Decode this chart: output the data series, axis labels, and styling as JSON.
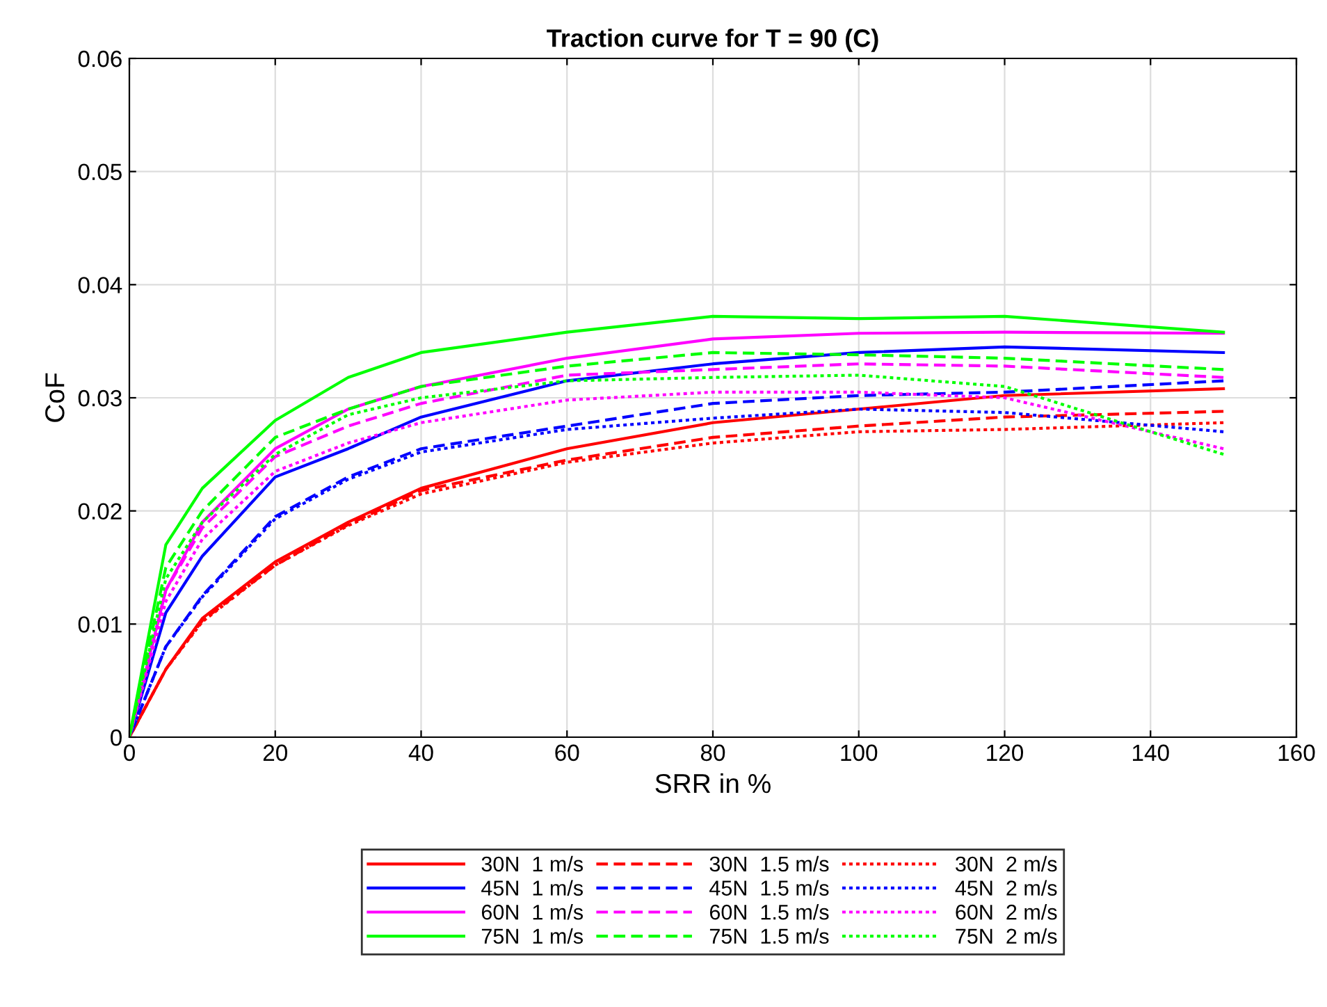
{
  "chart_data": {
    "type": "line",
    "title": "Traction curve for T = 90 (C)",
    "xlabel": "SRR in %",
    "ylabel": "CoF",
    "x": [
      0,
      5,
      10,
      20,
      30,
      40,
      60,
      80,
      100,
      120,
      150
    ],
    "xlim": [
      0,
      160
    ],
    "xticks": [
      0,
      20,
      40,
      60,
      80,
      100,
      120,
      140,
      160
    ],
    "ylim": [
      0,
      0.06
    ],
    "yticks": [
      0,
      0.01,
      0.02,
      0.03,
      0.04,
      0.05,
      0.06
    ],
    "grid": true,
    "legend": "bottom",
    "series": [
      {
        "name": "30N  1 m/s",
        "color": "#ff0000",
        "line_style": "solid",
        "values": [
          0,
          0.006,
          0.0105,
          0.0155,
          0.019,
          0.022,
          0.0255,
          0.0278,
          0.029,
          0.0302,
          0.0308
        ]
      },
      {
        "name": "30N  1.5 m/s",
        "color": "#ff0000",
        "line_style": "dashed",
        "values": [
          0,
          0.006,
          0.0103,
          0.0152,
          0.0188,
          0.0218,
          0.0245,
          0.0265,
          0.0275,
          0.0283,
          0.0288
        ]
      },
      {
        "name": "30N  2 m/s",
        "color": "#ff0000",
        "line_style": "dotted",
        "values": [
          0,
          0.006,
          0.0102,
          0.0152,
          0.0187,
          0.0215,
          0.0243,
          0.026,
          0.027,
          0.0272,
          0.0278
        ]
      },
      {
        "name": "45N  1 m/s",
        "color": "#0000ff",
        "line_style": "solid",
        "values": [
          0,
          0.011,
          0.016,
          0.023,
          0.0255,
          0.0283,
          0.0315,
          0.033,
          0.034,
          0.0345,
          0.034
        ]
      },
      {
        "name": "45N  1.5 m/s",
        "color": "#0000ff",
        "line_style": "dashed",
        "values": [
          0,
          0.008,
          0.0125,
          0.0195,
          0.023,
          0.0255,
          0.0275,
          0.0295,
          0.0302,
          0.0305,
          0.0315
        ]
      },
      {
        "name": "45N  2 m/s",
        "color": "#0000ff",
        "line_style": "dotted",
        "values": [
          0,
          0.008,
          0.0124,
          0.0193,
          0.0228,
          0.0252,
          0.0272,
          0.0282,
          0.029,
          0.0287,
          0.027
        ]
      },
      {
        "name": "60N  1 m/s",
        "color": "#ff00ff",
        "line_style": "solid",
        "values": [
          0,
          0.013,
          0.019,
          0.0255,
          0.029,
          0.031,
          0.0335,
          0.0352,
          0.0357,
          0.0358,
          0.0357
        ]
      },
      {
        "name": "60N  1.5 m/s",
        "color": "#ff00ff",
        "line_style": "dashed",
        "values": [
          0,
          0.013,
          0.0185,
          0.0248,
          0.0275,
          0.0295,
          0.032,
          0.0325,
          0.033,
          0.0328,
          0.0318
        ]
      },
      {
        "name": "60N  2 m/s",
        "color": "#ff00ff",
        "line_style": "dotted",
        "values": [
          0,
          0.012,
          0.0175,
          0.0235,
          0.026,
          0.0278,
          0.0298,
          0.0305,
          0.0305,
          0.03,
          0.0255
        ]
      },
      {
        "name": "75N  1 m/s",
        "color": "#00ff00",
        "line_style": "solid",
        "values": [
          0,
          0.017,
          0.022,
          0.028,
          0.0318,
          0.034,
          0.0358,
          0.0372,
          0.037,
          0.0372,
          0.0358
        ]
      },
      {
        "name": "75N  1.5 m/s",
        "color": "#00ff00",
        "line_style": "dashed",
        "values": [
          0,
          0.015,
          0.02,
          0.0265,
          0.029,
          0.031,
          0.0328,
          0.034,
          0.0338,
          0.0335,
          0.0325
        ]
      },
      {
        "name": "75N  2 m/s",
        "color": "#00ff00",
        "line_style": "dotted",
        "values": [
          0,
          0.014,
          0.019,
          0.025,
          0.0285,
          0.03,
          0.0315,
          0.0318,
          0.032,
          0.031,
          0.025
        ]
      }
    ]
  }
}
